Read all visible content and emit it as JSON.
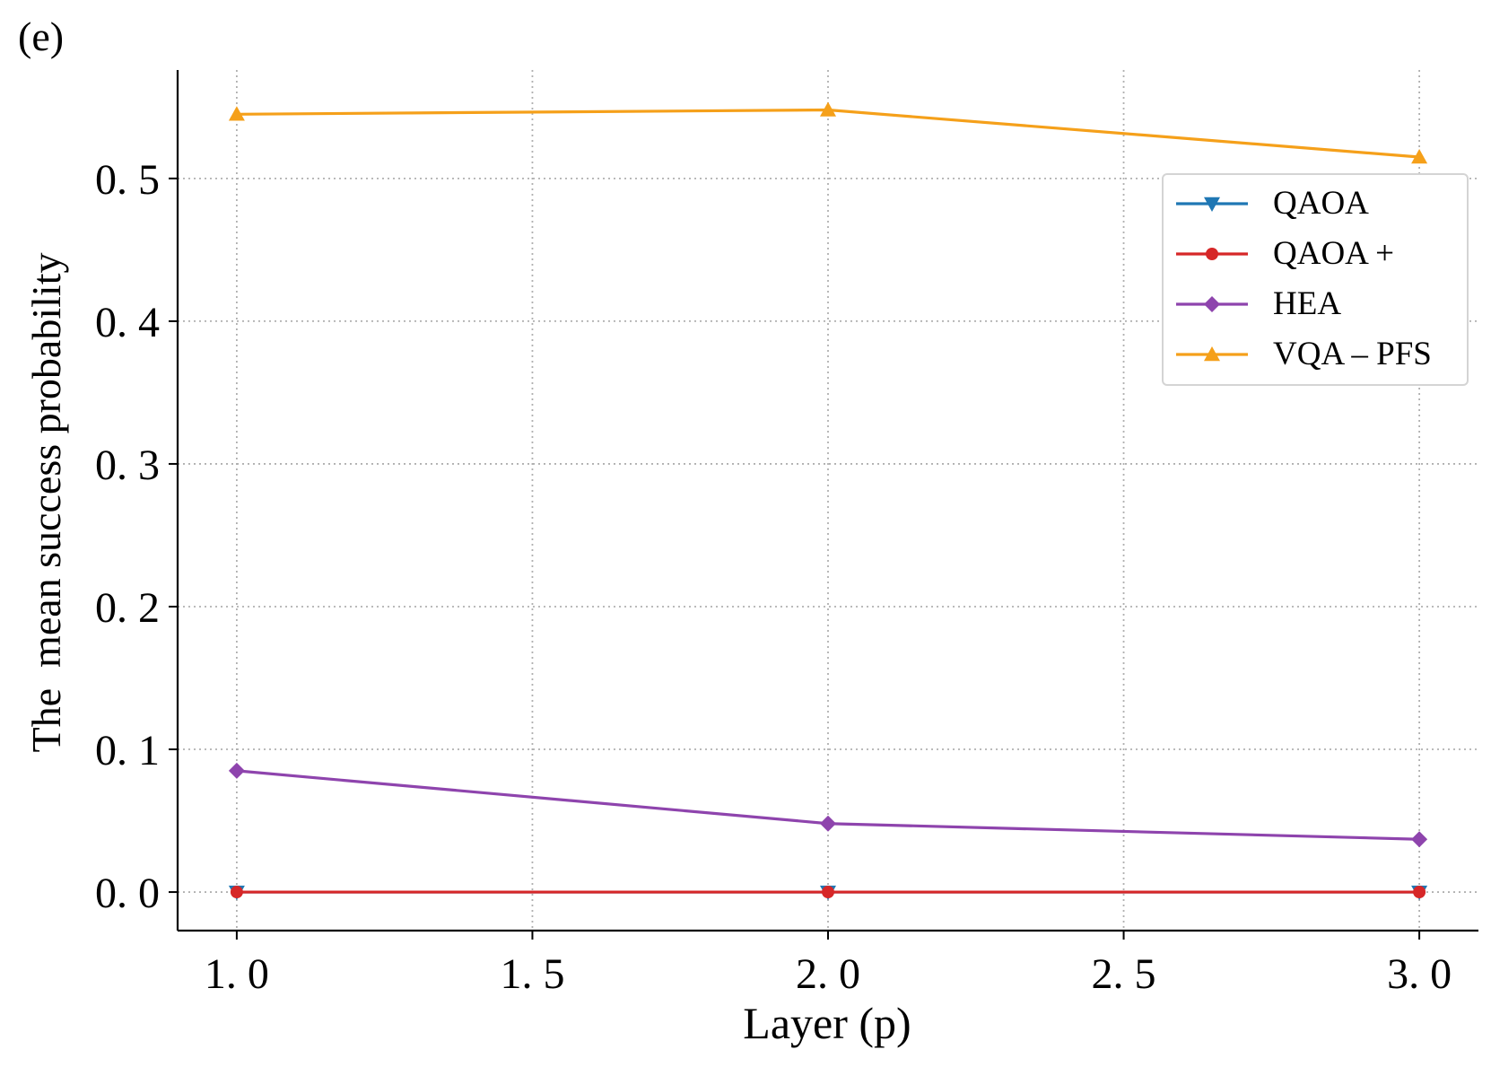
{
  "panel_label": "(e)",
  "chart_data": {
    "type": "line",
    "x": [
      1.0,
      2.0,
      3.0
    ],
    "xlabel": "Layer (p)",
    "ylabel": "The  mean success probability",
    "xlim": [
      0.9,
      3.1
    ],
    "ylim": [
      -0.027,
      0.576
    ],
    "xticks": [
      1.0,
      1.5,
      2.0,
      2.5,
      3.0
    ],
    "xtick_labels": [
      "1. 0",
      "1. 5",
      "2. 0",
      "2. 5",
      "3. 0"
    ],
    "yticks": [
      0.0,
      0.1,
      0.2,
      0.3,
      0.4,
      0.5
    ],
    "ytick_labels": [
      "0. 0",
      "0. 1",
      "0. 2",
      "0. 3",
      "0. 4",
      "0. 5"
    ],
    "grid": true,
    "legend_position": "upper right",
    "series": [
      {
        "name": "QAOA",
        "values": [
          0.0,
          0.0,
          0.0
        ],
        "color": "#1f77b4",
        "marker": "triangle-down"
      },
      {
        "name": "QAOA +",
        "values": [
          0.0,
          0.0,
          0.0
        ],
        "color": "#d62728",
        "marker": "circle"
      },
      {
        "name": "HEA",
        "values": [
          0.085,
          0.048,
          0.037
        ],
        "color": "#8e44ad",
        "marker": "diamond"
      },
      {
        "name": "VQA – PFS",
        "values": [
          0.545,
          0.548,
          0.515
        ],
        "color": "#f5a01a",
        "marker": "triangle-up"
      }
    ]
  }
}
